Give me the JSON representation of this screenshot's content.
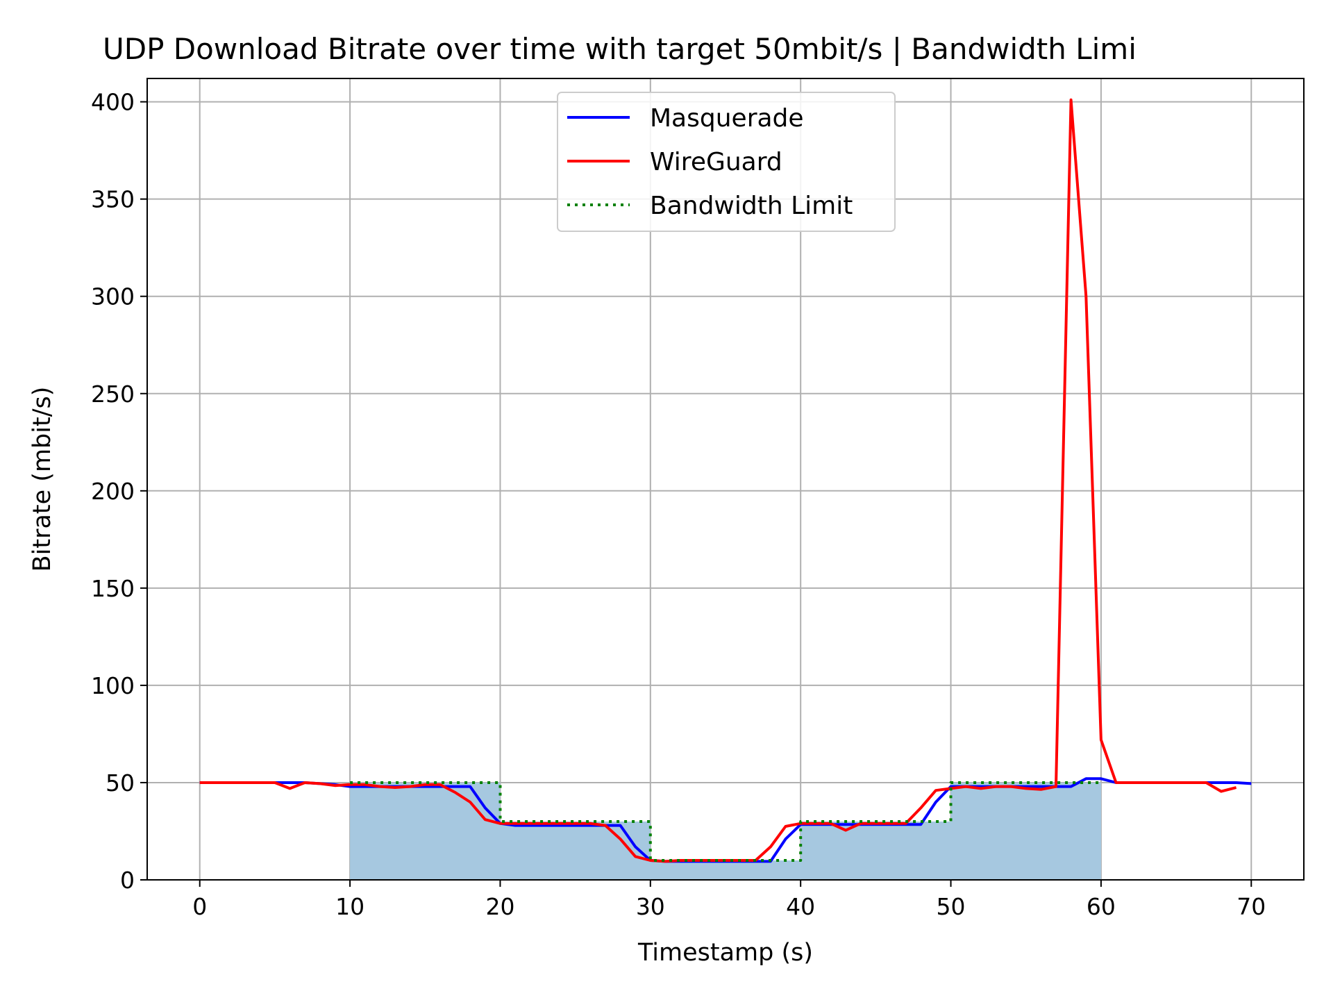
{
  "chart_data": {
    "type": "line",
    "title": "UDP Download Bitrate over time with target 50mbit/s | Bandwidth Limi",
    "xlabel": "Timestamp (s)",
    "ylabel": "Bitrate (mbit/s)",
    "xlim": [
      -3.5,
      73.5
    ],
    "ylim": [
      0,
      412
    ],
    "xticks": [
      0,
      10,
      20,
      30,
      40,
      50,
      60,
      70
    ],
    "yticks": [
      0,
      50,
      100,
      150,
      200,
      250,
      300,
      350,
      400
    ],
    "grid": true,
    "legend_position": "upper center",
    "series": [
      {
        "name": "Masquerade",
        "color": "#0000ff",
        "style": "solid",
        "x": [
          0,
          1,
          2,
          3,
          4,
          5,
          6,
          7,
          8,
          9,
          10,
          11,
          12,
          13,
          14,
          15,
          16,
          17,
          18,
          19,
          20,
          21,
          22,
          23,
          24,
          25,
          26,
          27,
          28,
          29,
          30,
          31,
          32,
          33,
          34,
          35,
          36,
          37,
          38,
          39,
          40,
          41,
          42,
          43,
          44,
          45,
          46,
          47,
          48,
          49,
          50,
          51,
          52,
          53,
          54,
          55,
          56,
          57,
          58,
          59,
          60,
          61,
          62,
          63,
          64,
          65,
          66,
          67,
          68,
          69,
          70
        ],
        "y": [
          50,
          50,
          50,
          50,
          50,
          50,
          50,
          50,
          49.5,
          49,
          48,
          48,
          48,
          48,
          48,
          48,
          48,
          48,
          48,
          37,
          29,
          28,
          28,
          28,
          28,
          28,
          28,
          28,
          28,
          17,
          10,
          9.5,
          9.5,
          9.5,
          9.5,
          9.5,
          9.5,
          9.5,
          9.5,
          21,
          28.5,
          28.5,
          28.5,
          28.5,
          28.5,
          28.5,
          28.5,
          28.5,
          28.5,
          40,
          48,
          48,
          48,
          48,
          48,
          48,
          48,
          48,
          48,
          52,
          52,
          50,
          50,
          50,
          50,
          50,
          50,
          50,
          50,
          50,
          49.5
        ]
      },
      {
        "name": "WireGuard",
        "color": "#ff0000",
        "style": "solid",
        "x": [
          0,
          1,
          2,
          3,
          4,
          5,
          6,
          7,
          8,
          9,
          10,
          11,
          12,
          13,
          14,
          15,
          16,
          17,
          18,
          19,
          20,
          21,
          22,
          23,
          24,
          25,
          26,
          27,
          28,
          29,
          30,
          31,
          32,
          33,
          34,
          35,
          36,
          37,
          38,
          39,
          40,
          41,
          42,
          43,
          44,
          45,
          46,
          47,
          48,
          49,
          50,
          51,
          52,
          53,
          54,
          55,
          56,
          57,
          58,
          59,
          60,
          61,
          62,
          63,
          64,
          65,
          66,
          67,
          68,
          69
        ],
        "y": [
          50,
          50,
          50,
          50,
          50,
          50,
          47,
          50,
          49.5,
          48.5,
          49,
          49,
          48,
          47.5,
          48,
          49,
          49,
          45,
          40,
          31,
          29,
          29,
          29,
          29,
          29,
          29,
          29,
          28,
          21,
          12,
          10,
          9.5,
          10,
          10,
          10,
          10,
          10,
          10,
          17,
          27.5,
          29,
          29,
          29,
          25.5,
          29,
          29,
          29,
          29,
          37,
          46,
          47,
          48,
          47,
          48,
          48,
          47,
          46.5,
          48,
          401,
          300,
          72,
          50,
          50,
          50,
          50,
          50,
          50,
          50,
          45.5,
          47.5
        ]
      },
      {
        "name": "Bandwidth Limit",
        "color": "#008000",
        "style": "dotted",
        "x": [
          10,
          20,
          20,
          30,
          30,
          40,
          40,
          50,
          50,
          60
        ],
        "y": [
          50,
          50,
          30,
          30,
          10,
          10,
          30,
          30,
          50,
          50
        ]
      }
    ],
    "shaded_area": {
      "color": "#a6c8e0",
      "x": [
        10,
        20,
        20,
        30,
        30,
        40,
        40,
        50,
        50,
        60
      ],
      "y": [
        50,
        50,
        30,
        30,
        10,
        10,
        30,
        30,
        50,
        50
      ]
    }
  }
}
